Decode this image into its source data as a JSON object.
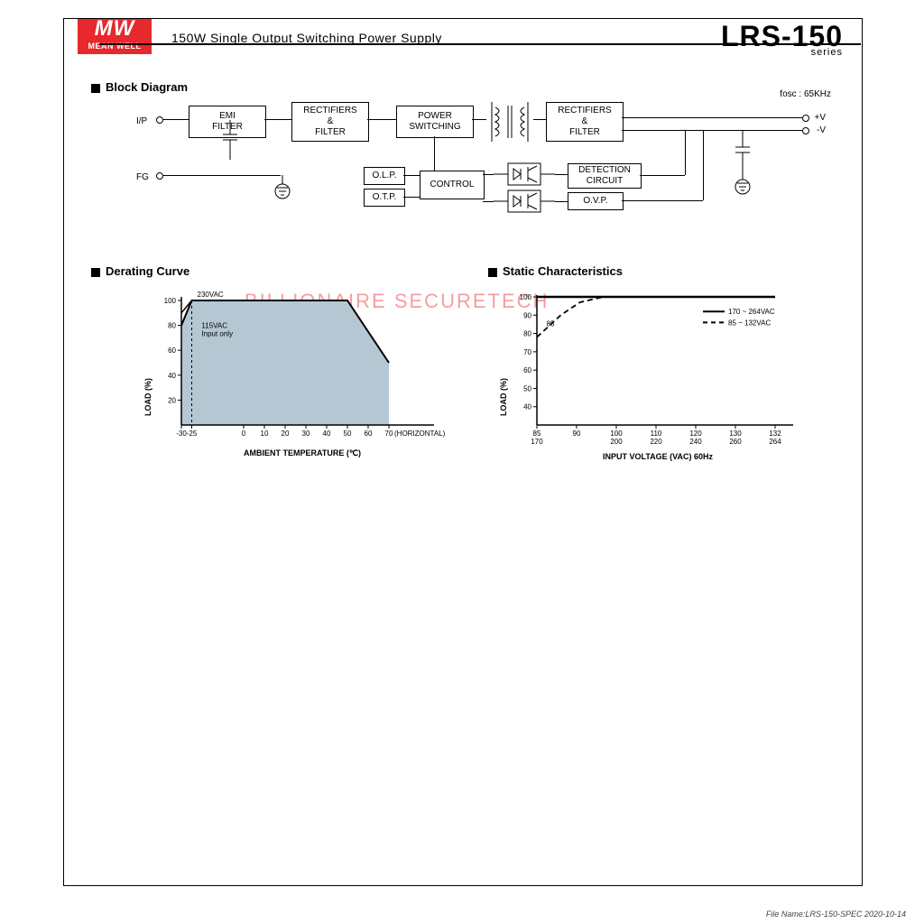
{
  "header": {
    "logo_top": "MW",
    "logo_bottom": "MEAN WELL",
    "subtitle": "150W Single Output Switching Power Supply",
    "model": "LRS-150",
    "series": "series"
  },
  "sections": {
    "block": "Block Diagram",
    "derating": "Derating Curve",
    "static": "Static Characteristics"
  },
  "watermark": "BILLIONAIRE SECURETECH",
  "block_diagram": {
    "fosc": "fosc : 65KHz",
    "io": {
      "ip": "I/P",
      "fg": "FG",
      "vp": "+V",
      "vn": "-V"
    },
    "boxes": {
      "emi": "EMI\nFILTER",
      "rect1": "RECTIFIERS\n&\nFILTER",
      "power": "POWER\nSWITCHING",
      "rect2": "RECTIFIERS\n&\nFILTER",
      "olp": "O.L.P.",
      "otp": "O.T.P.",
      "control": "CONTROL",
      "detect": "DETECTION\nCIRCUIT",
      "ovp": "O.V.P."
    }
  },
  "derating_chart": {
    "type": "area",
    "fill_color": "#b5c7d3",
    "stroke": "#000000",
    "ylabel": "LOAD (%)",
    "xlabel": "AMBIENT TEMPERATURE (℃)",
    "xlim": [
      -30,
      70
    ],
    "ylim": [
      0,
      100
    ],
    "xticks": [
      -30,
      -25,
      0,
      10,
      20,
      30,
      40,
      50,
      60,
      70
    ],
    "yticks": [
      20,
      40,
      60,
      80,
      100
    ],
    "annot_230": "230VAC",
    "annot_115": "115VAC\nInput only",
    "annot_axis_right": "(HORIZONTAL)",
    "curve_main": [
      [
        -30,
        80
      ],
      [
        -25,
        100
      ],
      [
        50,
        100
      ],
      [
        70,
        50
      ]
    ],
    "curve_230": [
      [
        -30,
        90
      ],
      [
        -25,
        100
      ]
    ],
    "dash_x": -25
  },
  "static_chart": {
    "type": "line",
    "stroke": "#000000",
    "ylabel": "LOAD (%)",
    "xlabel": "INPUT VOLTAGE (VAC) 60Hz",
    "ylim": [
      0,
      100
    ],
    "yticks": [
      40,
      50,
      60,
      70,
      80,
      90,
      100
    ],
    "xticks_top": [
      85,
      90,
      100,
      110,
      120,
      130,
      132
    ],
    "xticks_bot": [
      170,
      "",
      200,
      220,
      240,
      260,
      264
    ],
    "legend_solid": "170 ~ 264VAC",
    "legend_dash": "85 ~ 132VAC",
    "annot_85": "85",
    "series_solid": [
      [
        0,
        100
      ],
      [
        100,
        100
      ]
    ],
    "series_dash": [
      [
        0,
        78
      ],
      [
        10,
        90
      ],
      [
        18,
        97
      ],
      [
        28,
        100
      ],
      [
        100,
        100
      ]
    ]
  },
  "footer": "File Name:LRS-150-SPEC   2020-10-14"
}
